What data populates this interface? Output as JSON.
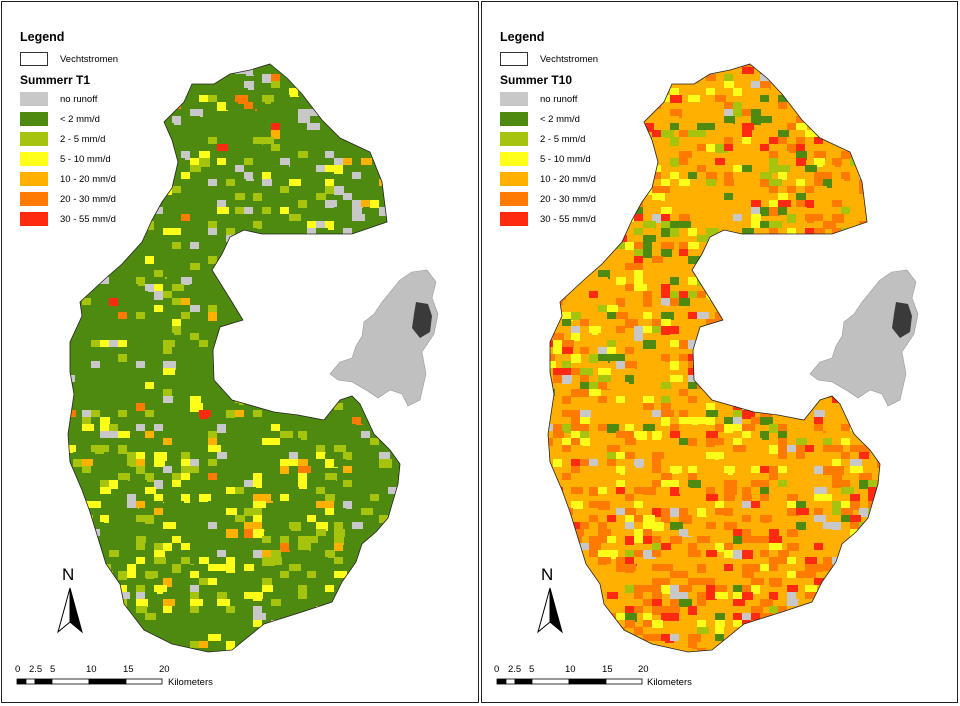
{
  "legend": {
    "title": "Legend",
    "boundary_label": "Vechtstromen"
  },
  "classes": [
    {
      "label": "no runoff",
      "color": "#c8c8c8"
    },
    {
      "label": "< 2 mm/d",
      "color": "#4f8a10"
    },
    {
      "label": "2  - 5 mm/d",
      "color": "#a6c40e"
    },
    {
      "label": "5  - 10 mm/d",
      "color": "#ffff1a"
    },
    {
      "label": "10  - 20 mm/d",
      "color": "#ffb000"
    },
    {
      "label": "20  - 30 mm/d",
      "color": "#ff7a00"
    },
    {
      "label": "30  - 55 mm/d",
      "color": "#ff2a10"
    }
  ],
  "panels": [
    {
      "subtitle": "Summerr T1",
      "dominant": "green"
    },
    {
      "subtitle": "Summer T10",
      "dominant": "orange"
    }
  ],
  "north_label": "N",
  "scale": {
    "ticks": [
      "0",
      "2.5",
      "5",
      "10",
      "15",
      "20"
    ],
    "unit": "Kilometers"
  },
  "inset": {
    "country_color": "#c0c0c0",
    "region_color": "#3a3a3a"
  }
}
